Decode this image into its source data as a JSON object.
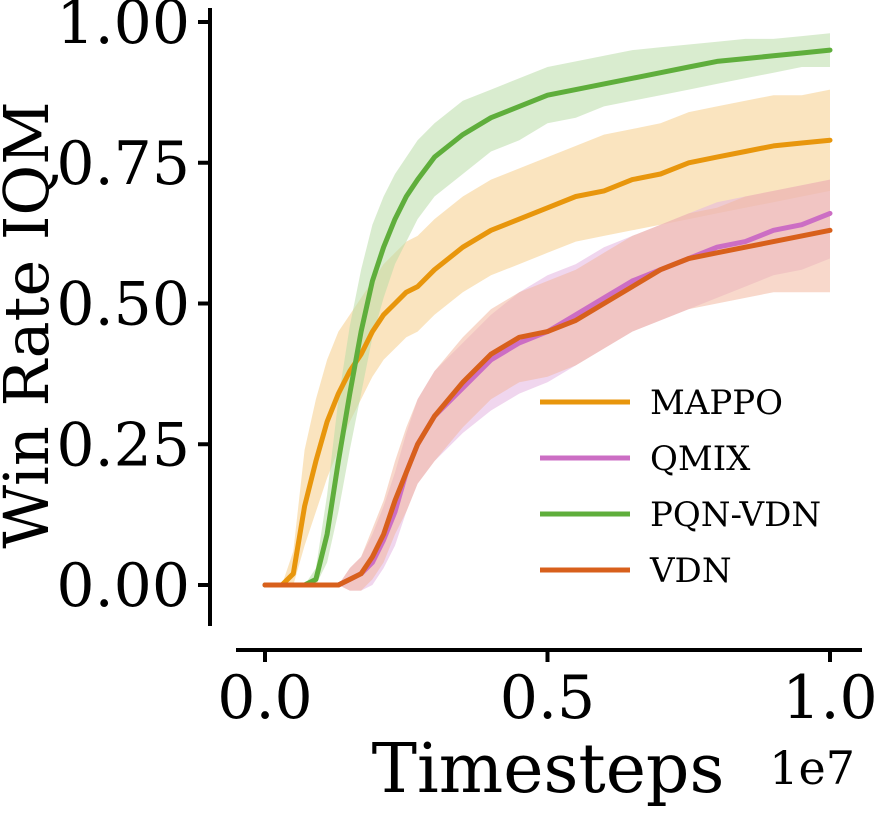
{
  "chart_data": {
    "type": "line",
    "xlabel": "Timesteps",
    "ylabel": "Win Rate IQM",
    "x_scale_label": "1e7",
    "xlim": [
      0,
      1.0
    ],
    "ylim": [
      -0.07,
      1.03
    ],
    "x_ticks": [
      "0.0",
      "0.5",
      "1.0"
    ],
    "y_ticks": [
      "0.00",
      "0.25",
      "0.50",
      "0.75",
      "1.00"
    ],
    "grid": false,
    "legend_position": "lower-right",
    "x": [
      0.0,
      0.03,
      0.05,
      0.07,
      0.09,
      0.11,
      0.13,
      0.15,
      0.17,
      0.19,
      0.21,
      0.23,
      0.25,
      0.27,
      0.3,
      0.35,
      0.4,
      0.45,
      0.5,
      0.55,
      0.6,
      0.65,
      0.7,
      0.75,
      0.8,
      0.85,
      0.9,
      0.95,
      1.0
    ],
    "series": [
      {
        "name": "MAPPO",
        "color": "#e8960c",
        "band_color": "#f5cd8a",
        "values": [
          0.0,
          0.0,
          0.02,
          0.14,
          0.22,
          0.29,
          0.34,
          0.38,
          0.41,
          0.45,
          0.48,
          0.5,
          0.52,
          0.53,
          0.56,
          0.6,
          0.63,
          0.65,
          0.67,
          0.69,
          0.7,
          0.72,
          0.73,
          0.75,
          0.76,
          0.77,
          0.78,
          0.785,
          0.79
        ],
        "lower": [
          0.0,
          0.0,
          0.0,
          0.07,
          0.13,
          0.19,
          0.24,
          0.29,
          0.33,
          0.37,
          0.4,
          0.42,
          0.44,
          0.45,
          0.48,
          0.52,
          0.55,
          0.57,
          0.59,
          0.61,
          0.62,
          0.63,
          0.64,
          0.65,
          0.66,
          0.67,
          0.68,
          0.69,
          0.7
        ],
        "upper": [
          0.0,
          0.0,
          0.06,
          0.24,
          0.33,
          0.4,
          0.45,
          0.48,
          0.51,
          0.54,
          0.57,
          0.59,
          0.61,
          0.62,
          0.65,
          0.69,
          0.72,
          0.74,
          0.76,
          0.78,
          0.8,
          0.81,
          0.82,
          0.84,
          0.85,
          0.86,
          0.87,
          0.87,
          0.88
        ]
      },
      {
        "name": "QMIX",
        "color": "#cc6ec4",
        "band_color": "#e4b5e0",
        "values": [
          0.0,
          0.0,
          0.0,
          0.0,
          0.0,
          0.0,
          0.0,
          0.01,
          0.02,
          0.04,
          0.08,
          0.13,
          0.2,
          0.25,
          0.3,
          0.35,
          0.4,
          0.43,
          0.45,
          0.48,
          0.51,
          0.54,
          0.56,
          0.58,
          0.6,
          0.61,
          0.63,
          0.64,
          0.66
        ],
        "lower": [
          0.0,
          0.0,
          0.0,
          0.0,
          0.0,
          0.0,
          0.0,
          -0.01,
          -0.01,
          0.0,
          0.03,
          0.07,
          0.13,
          0.18,
          0.22,
          0.27,
          0.31,
          0.34,
          0.36,
          0.39,
          0.42,
          0.45,
          0.47,
          0.49,
          0.51,
          0.53,
          0.55,
          0.56,
          0.58
        ],
        "upper": [
          0.0,
          0.0,
          0.0,
          0.0,
          0.0,
          0.0,
          0.0,
          0.03,
          0.05,
          0.09,
          0.14,
          0.2,
          0.27,
          0.33,
          0.38,
          0.43,
          0.48,
          0.52,
          0.55,
          0.57,
          0.6,
          0.62,
          0.64,
          0.66,
          0.68,
          0.69,
          0.7,
          0.71,
          0.72
        ]
      },
      {
        "name": "PQN-VDN",
        "color": "#5fae3c",
        "band_color": "#b9dca8",
        "values": [
          0.0,
          0.0,
          0.0,
          0.0,
          0.01,
          0.09,
          0.22,
          0.34,
          0.45,
          0.54,
          0.6,
          0.65,
          0.69,
          0.72,
          0.76,
          0.8,
          0.83,
          0.85,
          0.87,
          0.88,
          0.89,
          0.9,
          0.91,
          0.92,
          0.93,
          0.935,
          0.94,
          0.945,
          0.95
        ],
        "lower": [
          0.0,
          0.0,
          0.0,
          0.0,
          0.0,
          0.04,
          0.13,
          0.24,
          0.34,
          0.44,
          0.51,
          0.57,
          0.61,
          0.65,
          0.69,
          0.73,
          0.77,
          0.79,
          0.82,
          0.83,
          0.85,
          0.86,
          0.87,
          0.88,
          0.89,
          0.9,
          0.91,
          0.92,
          0.92
        ],
        "upper": [
          0.0,
          0.0,
          0.0,
          0.0,
          0.03,
          0.16,
          0.33,
          0.46,
          0.56,
          0.64,
          0.69,
          0.73,
          0.76,
          0.79,
          0.82,
          0.86,
          0.88,
          0.9,
          0.92,
          0.93,
          0.94,
          0.95,
          0.955,
          0.96,
          0.965,
          0.97,
          0.97,
          0.975,
          0.98
        ]
      },
      {
        "name": "VDN",
        "color": "#d8601c",
        "band_color": "#f2b8a0",
        "values": [
          0.0,
          0.0,
          0.0,
          0.0,
          0.0,
          0.0,
          0.0,
          0.01,
          0.02,
          0.05,
          0.09,
          0.15,
          0.2,
          0.25,
          0.3,
          0.36,
          0.41,
          0.44,
          0.45,
          0.47,
          0.5,
          0.53,
          0.56,
          0.58,
          0.59,
          0.6,
          0.61,
          0.62,
          0.63
        ],
        "lower": [
          0.0,
          0.0,
          0.0,
          0.0,
          0.0,
          0.0,
          0.0,
          -0.01,
          -0.01,
          0.01,
          0.04,
          0.09,
          0.13,
          0.18,
          0.22,
          0.28,
          0.33,
          0.36,
          0.37,
          0.39,
          0.42,
          0.45,
          0.47,
          0.49,
          0.5,
          0.51,
          0.52,
          0.52,
          0.52
        ],
        "upper": [
          0.0,
          0.0,
          0.0,
          0.0,
          0.0,
          0.0,
          0.0,
          0.03,
          0.05,
          0.1,
          0.15,
          0.22,
          0.28,
          0.33,
          0.38,
          0.44,
          0.49,
          0.52,
          0.54,
          0.56,
          0.59,
          0.62,
          0.64,
          0.66,
          0.67,
          0.69,
          0.7,
          0.71,
          0.72
        ]
      }
    ]
  }
}
